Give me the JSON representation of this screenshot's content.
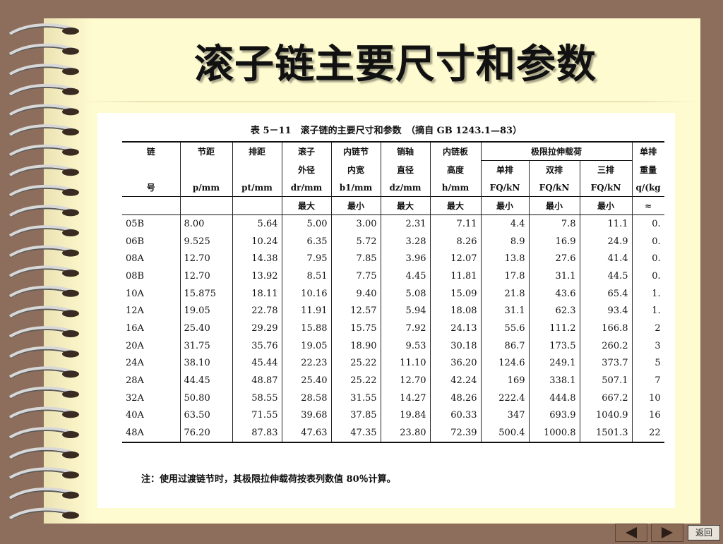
{
  "slide": {
    "title": "滚子链主要尺寸和参数"
  },
  "table": {
    "caption": "表 5－11　滚子链的主要尺寸和参数　（摘自 GB 1243.1—83）",
    "headers": {
      "chain_no": [
        "链",
        "号"
      ],
      "pitch": [
        "节距",
        "p/mm"
      ],
      "row_spacing": [
        "排距",
        "pt/mm"
      ],
      "roller_diameter": [
        "滚子",
        "外径",
        "dr/mm"
      ],
      "inner_width": [
        "内链节",
        "内宽",
        "b1/mm"
      ],
      "pin_diameter": [
        "销轴",
        "直径",
        "dz/mm"
      ],
      "plate_height": [
        "内链板",
        "高度",
        "h/mm"
      ],
      "tensile_group": "极限拉伸载荷",
      "single": [
        "单排",
        "FQ/kN"
      ],
      "double": [
        "双排",
        "FQ/kN"
      ],
      "triple": [
        "三排",
        "FQ/kN"
      ],
      "weight": [
        "单排",
        "重量",
        "q/(kg"
      ]
    },
    "subheaders": [
      "",
      "",
      "",
      "最大",
      "最小",
      "最大",
      "最大",
      "最小",
      "最小",
      "最小",
      "≈"
    ],
    "rows": [
      [
        "05B",
        "8.00",
        "5.64",
        "5.00",
        "3.00",
        "2.31",
        "7.11",
        "4.4",
        "7.8",
        "11.1",
        "0."
      ],
      [
        "06B",
        "9.525",
        "10.24",
        "6.35",
        "5.72",
        "3.28",
        "8.26",
        "8.9",
        "16.9",
        "24.9",
        "0."
      ],
      [
        "08A",
        "12.70",
        "14.38",
        "7.95",
        "7.85",
        "3.96",
        "12.07",
        "13.8",
        "27.6",
        "41.4",
        "0."
      ],
      [
        "08B",
        "12.70",
        "13.92",
        "8.51",
        "7.75",
        "4.45",
        "11.81",
        "17.8",
        "31.1",
        "44.5",
        "0."
      ],
      [
        "10A",
        "15.875",
        "18.11",
        "10.16",
        "9.40",
        "5.08",
        "15.09",
        "21.8",
        "43.6",
        "65.4",
        "1."
      ],
      [
        "12A",
        "19.05",
        "22.78",
        "11.91",
        "12.57",
        "5.94",
        "18.08",
        "31.1",
        "62.3",
        "93.4",
        "1."
      ],
      [
        "16A",
        "25.40",
        "29.29",
        "15.88",
        "15.75",
        "7.92",
        "24.13",
        "55.6",
        "111.2",
        "166.8",
        "2"
      ],
      [
        "20A",
        "31.75",
        "35.76",
        "19.05",
        "18.90",
        "9.53",
        "30.18",
        "86.7",
        "173.5",
        "260.2",
        "3"
      ],
      [
        "24A",
        "38.10",
        "45.44",
        "22.23",
        "25.22",
        "11.10",
        "36.20",
        "124.6",
        "249.1",
        "373.7",
        "5"
      ],
      [
        "28A",
        "44.45",
        "48.87",
        "25.40",
        "25.22",
        "12.70",
        "42.24",
        "169",
        "338.1",
        "507.1",
        "7"
      ],
      [
        "32A",
        "50.80",
        "58.55",
        "28.58",
        "31.55",
        "14.27",
        "48.26",
        "222.4",
        "444.8",
        "667.2",
        "10"
      ],
      [
        "40A",
        "63.50",
        "71.55",
        "39.68",
        "37.85",
        "19.84",
        "60.33",
        "347",
        "693.9",
        "1040.9",
        "16"
      ],
      [
        "48A",
        "76.20",
        "87.83",
        "47.63",
        "47.35",
        "23.80",
        "72.39",
        "500.4",
        "1000.8",
        "1501.3",
        "22"
      ]
    ],
    "note": "注：使用过渡链节时，其极限拉伸载荷按表列数值 80％计算。"
  },
  "nav": {
    "prev_icon": "triangle-left-icon",
    "next_icon": "triangle-right-icon",
    "back_label": "返回"
  }
}
